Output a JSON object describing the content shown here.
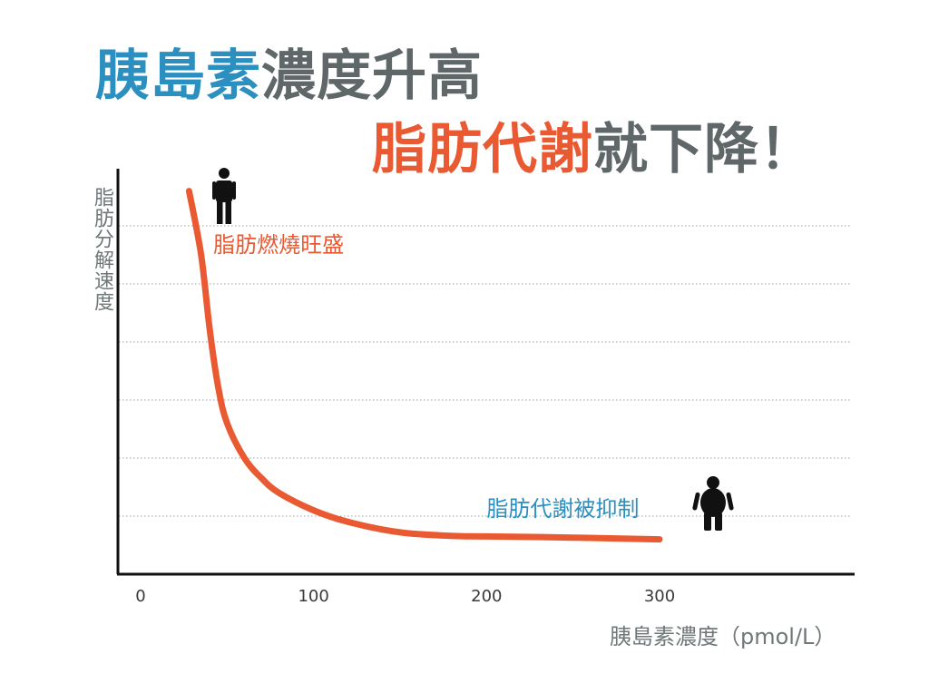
{
  "chart_data": {
    "type": "line",
    "title": {
      "line1": [
        {
          "text": "胰島素",
          "color": "#2b8fbf"
        },
        {
          "text": "濃度升高",
          "color": "#5f6769"
        }
      ],
      "line2": [
        {
          "text": "脂肪代謝",
          "color": "#ea5a32"
        },
        {
          "text": "就下降！",
          "color": "#5f6769"
        }
      ]
    },
    "xlabel": "胰島素濃度（pmol/L）",
    "ylabel": "脂肪分解速度",
    "xticks": [
      {
        "value": 0,
        "label": "0"
      },
      {
        "value": 100,
        "label": "100"
      },
      {
        "value": 200,
        "label": "200"
      },
      {
        "value": 300,
        "label": "300"
      }
    ],
    "xlim": [
      0,
      410
    ],
    "ylim": [
      0,
      7
    ],
    "grid": "horizontal-dotted",
    "series": [
      {
        "color": "#ea5a32",
        "x": [
          28,
          35,
          40,
          45,
          50,
          60,
          70,
          80,
          100,
          120,
          150,
          180,
          200,
          250,
          300
        ],
        "y": [
          6.6,
          5.5,
          4.2,
          3.2,
          2.6,
          2.0,
          1.65,
          1.4,
          1.1,
          0.9,
          0.72,
          0.66,
          0.65,
          0.63,
          0.6
        ]
      }
    ],
    "annotations": [
      {
        "text": "脂肪燃燒旺盛",
        "x": 42,
        "y": 5.55,
        "color": "#ea5a32",
        "icon": "slim-person-icon"
      },
      {
        "text": "脂肪代謝被抑制",
        "x": 200,
        "y": 1.0,
        "color": "#2b8fbf",
        "icon": "overweight-person-icon"
      }
    ]
  }
}
